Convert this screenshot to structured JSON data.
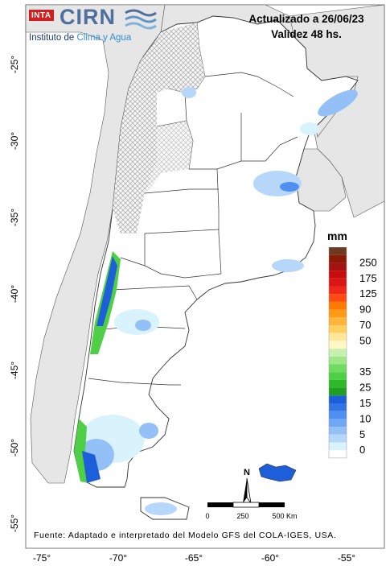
{
  "header": {
    "line1": "Actualizado a 26/06/23",
    "line2": "Validez 48 hs."
  },
  "logo": {
    "badge": "INTA",
    "name": "CIRN",
    "subtitle_prefix": "Instituto de ",
    "subtitle_emph": "Clima y Agua"
  },
  "legend": {
    "unit": "mm",
    "levels": [
      {
        "label": "250",
        "colors": [
          "#8a1a06",
          "#a41212"
        ]
      },
      {
        "label": "175",
        "colors": [
          "#c70d0d",
          "#db1616"
        ]
      },
      {
        "label": "125",
        "colors": [
          "#f0281a",
          "#ff4a12"
        ]
      },
      {
        "label": "90",
        "colors": [
          "#ff7a00",
          "#ff9a18"
        ]
      },
      {
        "label": "70",
        "colors": [
          "#ffb43a",
          "#ffd060"
        ]
      },
      {
        "label": "50",
        "colors": [
          "#ffe79a",
          "#fff7c4"
        ]
      },
      {
        "label": "",
        "colors": [
          "#c6f0b0",
          "#9de688"
        ]
      },
      {
        "label": "35",
        "colors": [
          "#6fdc61",
          "#4fcf46"
        ]
      },
      {
        "label": "25",
        "colors": [
          "#2fb82a",
          "#1f9e1f"
        ]
      },
      {
        "label": "15",
        "colors": [
          "#1c5fd8",
          "#3375e6"
        ]
      },
      {
        "label": "10",
        "colors": [
          "#4f8ff0",
          "#70a7f5"
        ]
      },
      {
        "label": "5",
        "colors": [
          "#93c0f7",
          "#b7d7fa"
        ]
      },
      {
        "label": "0",
        "colors": [
          "#d9f3fd",
          "#ffffff"
        ]
      }
    ],
    "top_color": "#6b3a20"
  },
  "axes": {
    "lat_labels": [
      "-25°",
      "-30°",
      "-35°",
      "-40°",
      "-45°",
      "-50°",
      "-55°"
    ],
    "lon_labels": [
      "-75°",
      "-70°",
      "-65°",
      "-60°",
      "-55°"
    ]
  },
  "scale_bar": {
    "labels": [
      "0",
      "250",
      "500 Km"
    ]
  },
  "north": "N",
  "source": "Fuente: Adaptado e interpretado del Modelo GFS del COLA-IGES, USA.",
  "colors": {
    "land": "#ffffff",
    "neighbor": "#e6e6e6",
    "ocean": "#ffffff",
    "hatch": "#9a9a9a"
  }
}
